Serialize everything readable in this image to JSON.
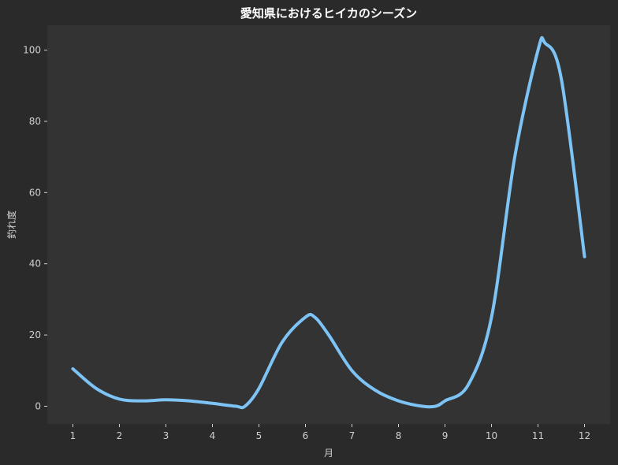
{
  "chart_data": {
    "type": "line",
    "title": "愛知県におけるヒイカのシーズン",
    "xlabel": "月",
    "ylabel": "釣れ度",
    "x": [
      1,
      2,
      3,
      4,
      5,
      6,
      7,
      8,
      9,
      10,
      11,
      12
    ],
    "x_ticks": [
      "1",
      "2",
      "3",
      "4",
      "5",
      "6",
      "7",
      "8",
      "9",
      "10",
      "11",
      "12"
    ],
    "y_ticks": [
      "0",
      "20",
      "40",
      "60",
      "80",
      "100"
    ],
    "xlim": [
      0.45,
      12.55
    ],
    "ylim": [
      -5,
      107
    ],
    "grid": false,
    "colors": {
      "background": "#2a2a2a",
      "plot_area": "#333333",
      "line": "#7dc3f5",
      "text": "#cfcfcf",
      "title": "#ffffff"
    },
    "series": [
      {
        "x": [
          1,
          1.5,
          2,
          2.5,
          3,
          3.5,
          4,
          4.5,
          4.7,
          5,
          5.5,
          6,
          6.2,
          6.5,
          7,
          7.5,
          8,
          8.5,
          8.8,
          9,
          9.5,
          10,
          10.5,
          11,
          11.15,
          11.5,
          12
        ],
        "values": [
          10.5,
          5,
          2,
          1.5,
          1.8,
          1.5,
          0.8,
          0,
          0,
          5,
          18,
          25,
          25,
          20,
          10,
          4.5,
          1.5,
          0,
          0,
          1.5,
          6,
          25,
          70,
          100,
          102,
          92,
          42
        ]
      }
    ]
  }
}
